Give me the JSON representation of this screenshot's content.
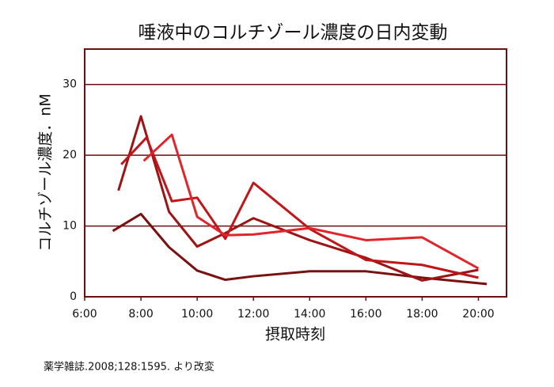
{
  "chart_data": {
    "type": "line",
    "title": "唾液中のコルチゾール濃度の日内変動",
    "x_label": "摂取時刻",
    "y_label": "コルチゾール濃度．nM",
    "source": "薬学雑誌.2008;128:1595. より改変",
    "xlim": [
      6,
      21
    ],
    "ylim": [
      0,
      35
    ],
    "xticks": [
      {
        "value": 6,
        "label": "6:00"
      },
      {
        "value": 8,
        "label": "8:00"
      },
      {
        "value": 10,
        "label": "10:00"
      },
      {
        "value": 12,
        "label": "12:00"
      },
      {
        "value": 14,
        "label": "14:00"
      },
      {
        "value": 16,
        "label": "16:00"
      },
      {
        "value": 18,
        "label": "18:00"
      },
      {
        "value": 20,
        "label": "20:00"
      }
    ],
    "yticks": [
      0,
      10,
      20,
      30
    ],
    "grid": true,
    "frame_color": "#6b0f0f",
    "series": [
      {
        "color": "#7a1010",
        "x": [
          7,
          8,
          9,
          10,
          11,
          12,
          14,
          16,
          18,
          20.3
        ],
        "values": [
          9.3,
          11.7,
          7,
          3.7,
          2.4,
          2.9,
          3.6,
          3.6,
          2.7,
          1.8
        ]
      },
      {
        "color": "#9c1414",
        "x": [
          7.2,
          8,
          9,
          10,
          11,
          12,
          14,
          16,
          18,
          20
        ],
        "values": [
          15,
          25.5,
          12,
          7.1,
          9,
          11.1,
          8,
          5.5,
          2.3,
          3.8
        ]
      },
      {
        "color": "#c01519",
        "x": [
          7.3,
          8.2,
          9.1,
          10,
          11,
          12,
          14,
          16,
          18,
          20
        ],
        "values": [
          18.7,
          22.5,
          13.5,
          14,
          8.2,
          16.1,
          9.6,
          5.2,
          4.5,
          2.7
        ]
      },
      {
        "color": "#e0262b",
        "x": [
          8.1,
          9.1,
          10,
          11,
          12,
          14,
          16,
          18,
          20
        ],
        "values": [
          19.2,
          22.9,
          11.3,
          8.7,
          8.8,
          9.7,
          8,
          8.4,
          4
        ]
      }
    ]
  }
}
